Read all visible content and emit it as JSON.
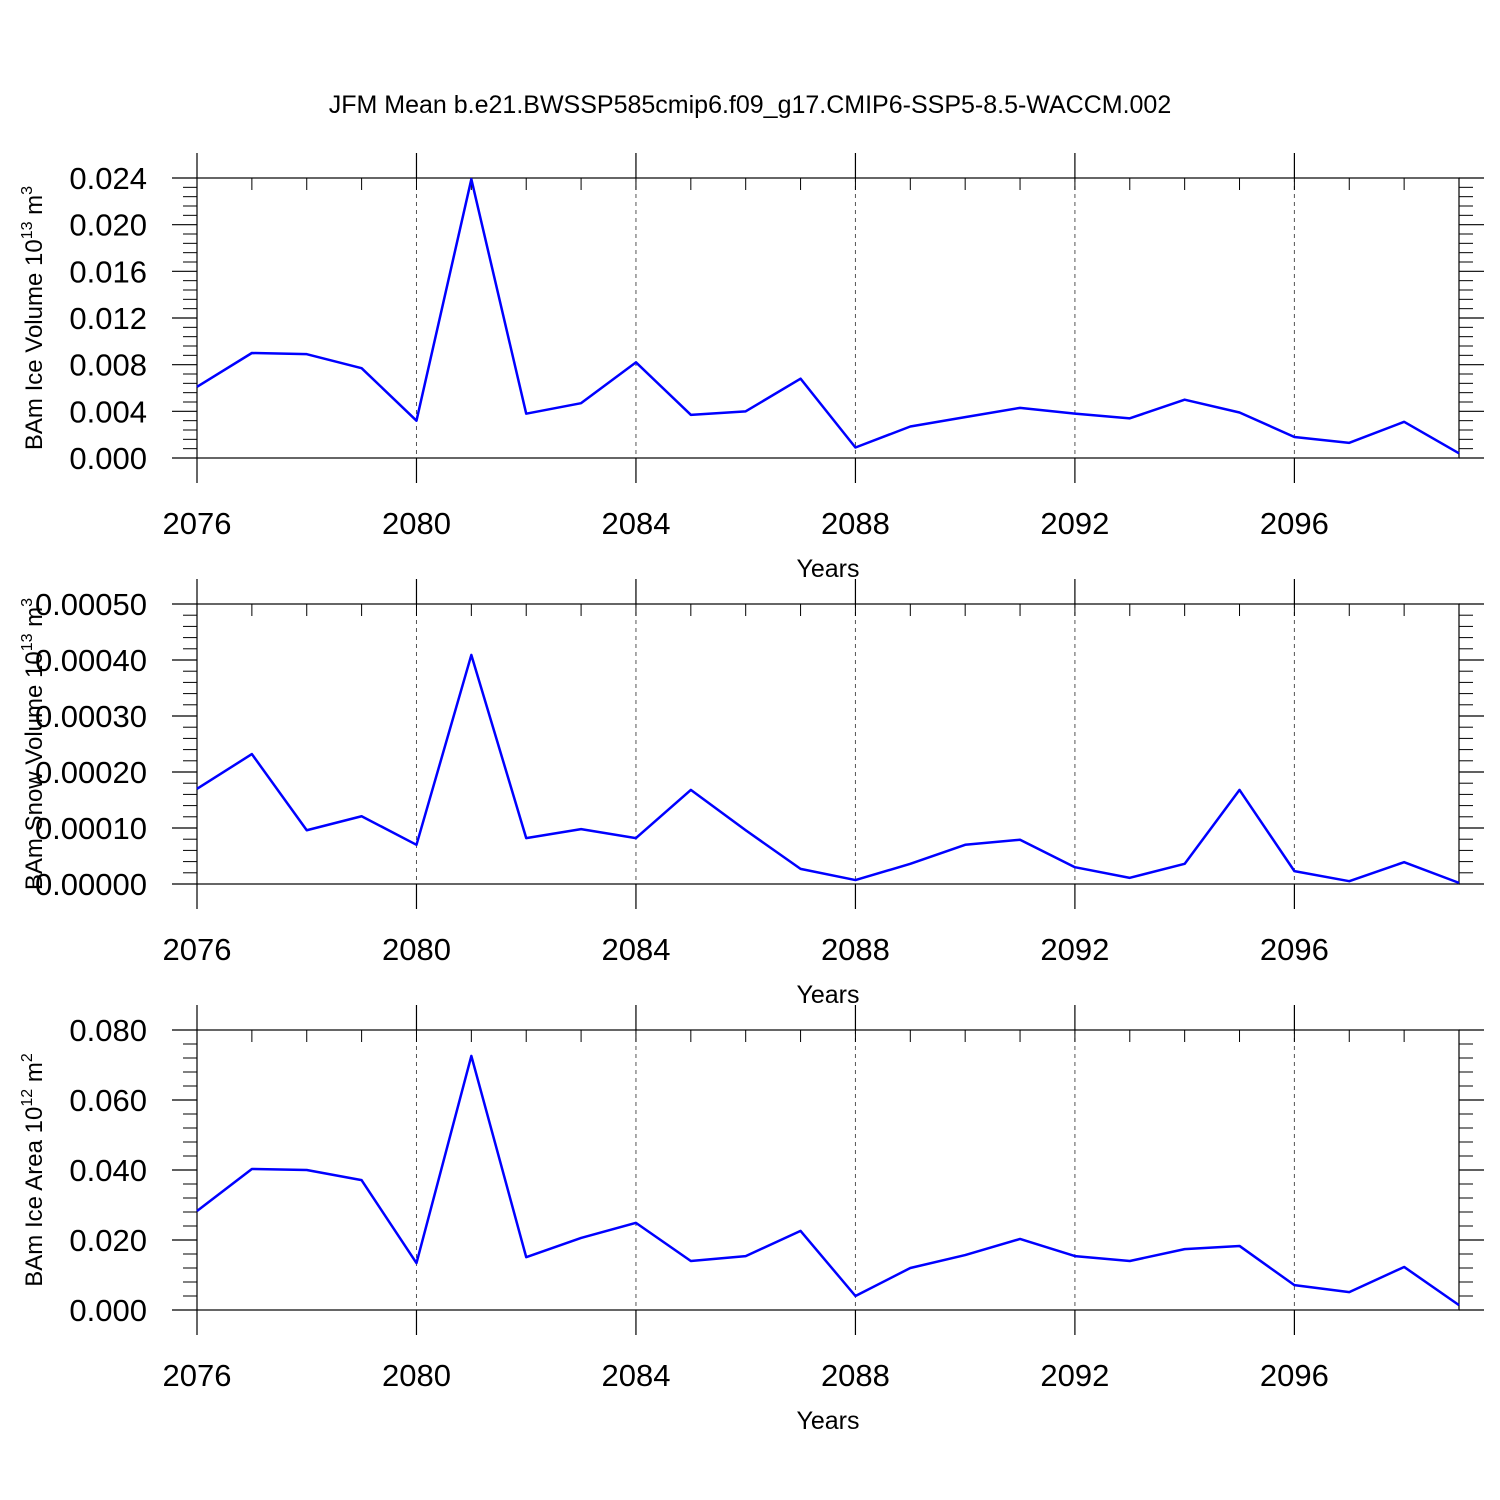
{
  "title": "JFM Mean b.e21.BWSSP585cmip6.f09_g17.CMIP6-SSP5-8.5-WACCM.002",
  "chart_data": [
    {
      "type": "line",
      "ylabel": {
        "text": "BAm Ice Volume 10",
        "sup": "13",
        "unit": " m",
        "unit_sup": "3"
      },
      "xlabel": "Years",
      "x": [
        2076,
        2077,
        2078,
        2079,
        2080,
        2081,
        2082,
        2083,
        2084,
        2085,
        2086,
        2087,
        2088,
        2089,
        2090,
        2091,
        2092,
        2093,
        2094,
        2095,
        2096,
        2097,
        2098,
        2099
      ],
      "series": [
        {
          "color": "#0000ff",
          "values": [
            0.0061,
            0.009,
            0.0089,
            0.0077,
            0.0032,
            0.0239,
            0.0038,
            0.0047,
            0.0082,
            0.0037,
            0.004,
            0.0068,
            0.0009,
            0.0027,
            0.0035,
            0.0043,
            0.0038,
            0.0034,
            0.005,
            0.0039,
            0.0018,
            0.0013,
            0.0031,
            0.0004
          ]
        }
      ],
      "xlim": [
        2076,
        2099
      ],
      "xticks": [
        2076,
        2080,
        2084,
        2088,
        2092,
        2096
      ],
      "ylim": [
        0,
        0.024
      ],
      "yticks": [
        {
          "value": 0,
          "label": "0.000"
        },
        {
          "value": 0.004,
          "label": "0.004"
        },
        {
          "value": 0.008,
          "label": "0.008"
        },
        {
          "value": 0.012,
          "label": "0.012"
        },
        {
          "value": 0.016,
          "label": "0.016"
        },
        {
          "value": 0.02,
          "label": "0.020"
        },
        {
          "value": 0.024,
          "label": "0.024"
        }
      ],
      "xgrid": true
    },
    {
      "type": "line",
      "ylabel": {
        "text": "BAm Snow Volume 10",
        "sup": "13",
        "unit": " m",
        "unit_sup": "3"
      },
      "xlabel": "Years",
      "x": [
        2076,
        2077,
        2078,
        2079,
        2080,
        2081,
        2082,
        2083,
        2084,
        2085,
        2086,
        2087,
        2088,
        2089,
        2090,
        2091,
        2092,
        2093,
        2094,
        2095,
        2096,
        2097,
        2098,
        2099
      ],
      "series": [
        {
          "color": "#0000ff",
          "values": [
            0.00017,
            0.000232,
            9.6e-05,
            0.000121,
            7e-05,
            0.000409,
            8.2e-05,
            9.8e-05,
            8.2e-05,
            0.000168,
            9.6e-05,
            2.7e-05,
            7e-06,
            3.6e-05,
            7e-05,
            7.9e-05,
            3e-05,
            1.1e-05,
            3.6e-05,
            0.000168,
            2.3e-05,
            5e-06,
            3.9e-05,
            2e-06
          ]
        }
      ],
      "xlim": [
        2076,
        2099
      ],
      "xticks": [
        2076,
        2080,
        2084,
        2088,
        2092,
        2096
      ],
      "ylim": [
        0,
        0.0005
      ],
      "yticks": [
        {
          "value": 0,
          "label": "0.00000"
        },
        {
          "value": 0.0001,
          "label": "0.00010"
        },
        {
          "value": 0.0002,
          "label": "0.00020"
        },
        {
          "value": 0.0003,
          "label": "0.00030"
        },
        {
          "value": 0.0004,
          "label": "0.00040"
        },
        {
          "value": 0.0005,
          "label": "0.00050"
        }
      ],
      "xgrid": true
    },
    {
      "type": "line",
      "ylabel": {
        "text": "BAm Ice Area 10",
        "sup": "12",
        "unit": " m",
        "unit_sup": "2"
      },
      "xlabel": "Years",
      "x": [
        2076,
        2077,
        2078,
        2079,
        2080,
        2081,
        2082,
        2083,
        2084,
        2085,
        2086,
        2087,
        2088,
        2089,
        2090,
        2091,
        2092,
        2093,
        2094,
        2095,
        2096,
        2097,
        2098,
        2099
      ],
      "series": [
        {
          "color": "#0000ff",
          "values": [
            0.0283,
            0.0403,
            0.04,
            0.0371,
            0.0134,
            0.0726,
            0.0151,
            0.0206,
            0.0249,
            0.014,
            0.0154,
            0.0226,
            0.004,
            0.012,
            0.0157,
            0.0203,
            0.0154,
            0.014,
            0.0174,
            0.0183,
            0.0071,
            0.0051,
            0.0123,
            0.0014
          ]
        }
      ],
      "xlim": [
        2076,
        2099
      ],
      "xticks": [
        2076,
        2080,
        2084,
        2088,
        2092,
        2096
      ],
      "ylim": [
        0,
        0.08
      ],
      "yticks": [
        {
          "value": 0,
          "label": "0.000"
        },
        {
          "value": 0.02,
          "label": "0.020"
        },
        {
          "value": 0.04,
          "label": "0.040"
        },
        {
          "value": 0.06,
          "label": "0.060"
        },
        {
          "value": 0.08,
          "label": "0.080"
        }
      ],
      "xgrid": true
    }
  ]
}
